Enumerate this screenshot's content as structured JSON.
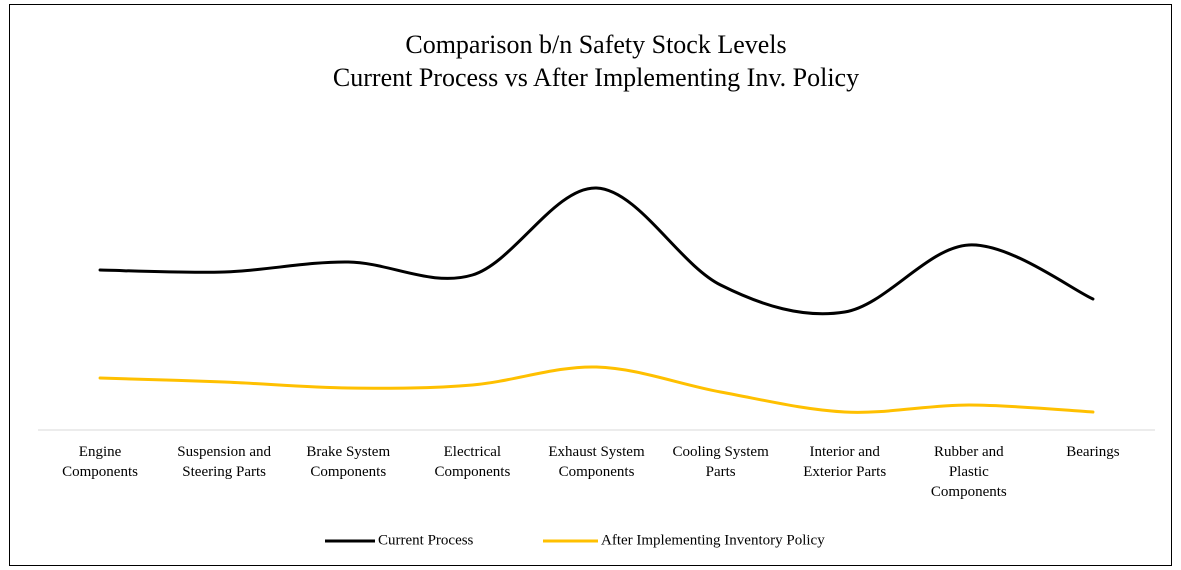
{
  "chart_data": {
    "type": "line",
    "title": "Comparison b/n Safety Stock Levels",
    "subtitle": "Current Process vs After Implementing Inv. Policy",
    "categories": [
      "Engine Components",
      "Suspension and Steering Parts",
      "Brake System Components",
      "Electrical Components",
      "Exhaust System Components",
      "Cooling System Parts",
      "Interior and Exterior Parts",
      "Rubber and Plastic Components",
      "Bearings"
    ],
    "series": [
      {
        "name": "Current Process",
        "color": "#000000",
        "values": [
          160,
          158,
          168,
          155,
          242,
          145,
          118,
          185,
          131
        ]
      },
      {
        "name": "After Implementing Inventory Policy",
        "color": "#ffc000",
        "values": [
          52,
          48,
          42,
          45,
          63,
          38,
          18,
          25,
          18
        ]
      }
    ],
    "ylim": [
      0,
      280
    ],
    "smooth": true,
    "legend": "bottom"
  }
}
